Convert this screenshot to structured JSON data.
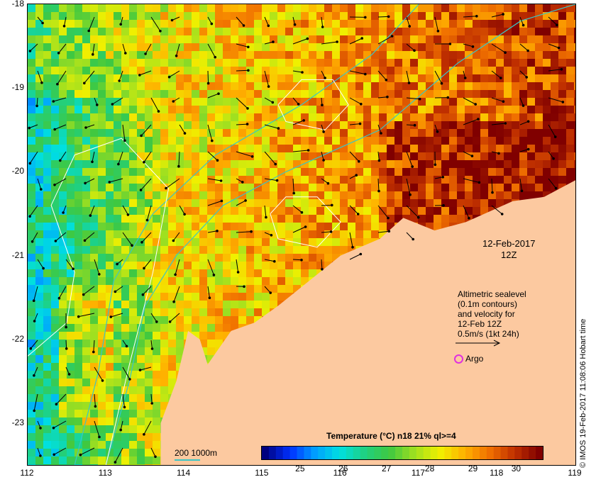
{
  "map": {
    "lat_labels": [
      "-18",
      "-19",
      "-20",
      "-21",
      "-22",
      "-23"
    ],
    "lat_values": [
      -18,
      -19,
      -20,
      -21,
      -22,
      -23
    ],
    "lon_labels": [
      "112",
      "113",
      "114",
      "115",
      "116",
      "117",
      "118",
      "119"
    ],
    "lon_values": [
      112,
      113,
      114,
      115,
      116,
      117,
      118,
      119
    ],
    "lon_range": [
      112,
      119
    ],
    "lat_range": [
      -23.5,
      -18
    ],
    "land_color": "#fcc9a0",
    "contour_color": "#ffffff",
    "bathymetry_color": "#3ac6c6"
  },
  "date": {
    "line1": "12-Feb-2017",
    "line2": "12Z"
  },
  "altimetry_note": {
    "line1": "Altimetric sealevel",
    "line2": "(0.1m contours)",
    "line3": "and velocity for",
    "line4": "12-Feb 12Z",
    "line5": "0.5m/s (1kt 24h)"
  },
  "argo": {
    "label": "Argo",
    "color": "#e030e0"
  },
  "colorbar": {
    "title": "Temperature (°C) n18 21% ql>=4",
    "ticks": [
      "25",
      "26",
      "27",
      "28",
      "29",
      "30"
    ],
    "tick_values": [
      25,
      26,
      27,
      28,
      29,
      30
    ],
    "range": [
      24.1,
      30.6
    ],
    "colors": [
      "#00007f",
      "#0030ff",
      "#00a0ff",
      "#00e0e0",
      "#20d080",
      "#40c840",
      "#a0e020",
      "#f0f000",
      "#ffb000",
      "#f07000",
      "#c03000",
      "#800000"
    ]
  },
  "depth_legend": {
    "label": "200  1000m"
  },
  "credit": "© IMOS 19-Feb-2017 11:08:06 Hobart time"
}
